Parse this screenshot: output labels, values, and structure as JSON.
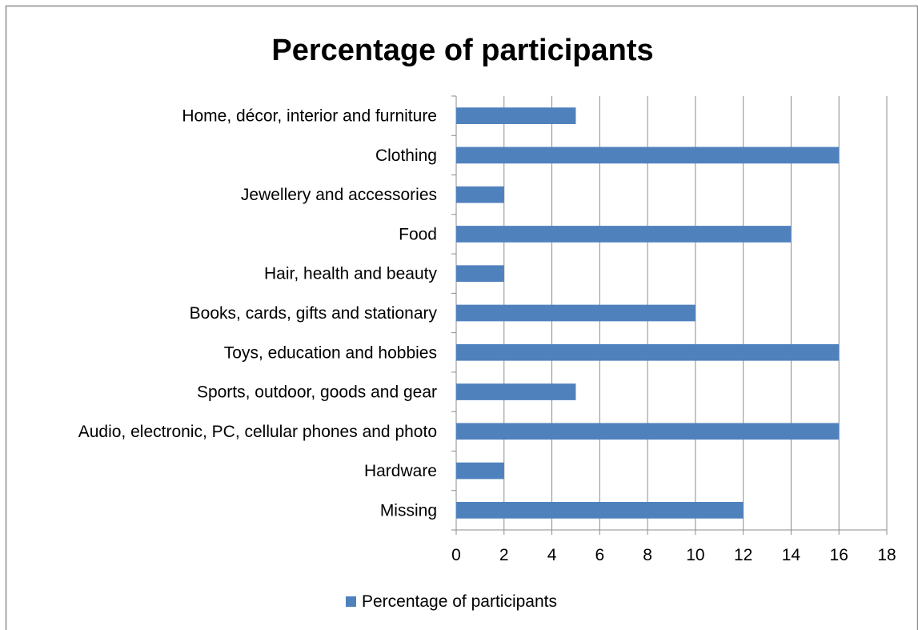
{
  "chart_data": {
    "type": "bar",
    "orientation": "horizontal",
    "title": "Percentage of participants",
    "categories": [
      "Home, décor, interior and furniture",
      "Clothing",
      "Jewellery and accessories",
      "Food",
      "Hair, health and beauty",
      "Books, cards, gifts and stationary",
      "Toys, education and hobbies",
      "Sports, outdoor, goods and gear",
      "Audio, electronic, PC, cellular phones and photo",
      "Hardware",
      "Missing"
    ],
    "series": [
      {
        "name": "Percentage of participants",
        "color": "#4F81BD",
        "values": [
          5,
          16,
          2,
          14,
          2,
          10,
          16,
          5,
          16,
          2,
          12
        ]
      }
    ],
    "xlim": [
      0,
      18
    ],
    "xticks": [
      0,
      2,
      4,
      6,
      8,
      10,
      12,
      14,
      16,
      18
    ],
    "grid": "vertical",
    "legend": "bottom"
  }
}
